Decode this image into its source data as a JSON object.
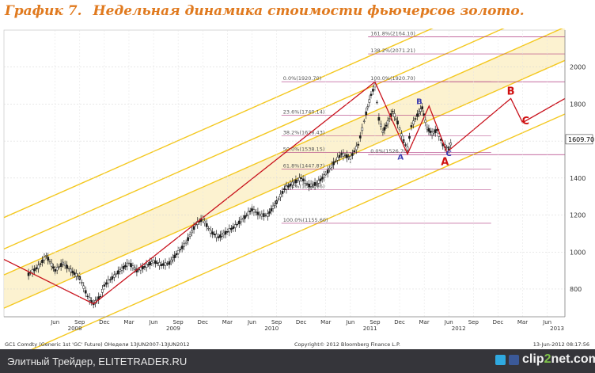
{
  "title": {
    "number": "График 7.",
    "text": "Недельная динамика стоимости фьючерсов золото."
  },
  "footer": {
    "site": "Элитный Трейдер, ELITETRADER.RU",
    "logo_main": "clip",
    "logo_two": "2",
    "logo_tail": "net.com"
  },
  "colors": {
    "title": "#e07a1f",
    "channel": "#f4c81f",
    "fill": "#fbf0c8",
    "trend": "#c8101a",
    "fib": "#b03a80",
    "wave_blue": "#3b3bb0",
    "wave_red": "#d01010",
    "price": "#1a1a1a"
  },
  "chart_data": {
    "type": "line",
    "subtype": "candlestick-weekly",
    "ylim": [
      650,
      2200
    ],
    "y_ticks": [
      800,
      1000,
      1200,
      1400,
      1600,
      1800,
      2000
    ],
    "x_ticks": [
      {
        "label": "Jun",
        "date": 2008.42
      },
      {
        "label": "Sep",
        "date": 2008.67
      },
      {
        "label": "Dec",
        "date": 2008.92
      },
      {
        "label": "Mar",
        "date": 2009.17
      },
      {
        "label": "Jun",
        "date": 2009.42
      },
      {
        "label": "Sep",
        "date": 2009.67
      },
      {
        "label": "Dec",
        "date": 2009.92
      },
      {
        "label": "Mar",
        "date": 2010.17
      },
      {
        "label": "Jun",
        "date": 2010.42
      },
      {
        "label": "Sep",
        "date": 2010.67
      },
      {
        "label": "Dec",
        "date": 2010.92
      },
      {
        "label": "Mar",
        "date": 2011.17
      },
      {
        "label": "Jun",
        "date": 2011.42
      },
      {
        "label": "Sep",
        "date": 2011.67
      },
      {
        "label": "Dec",
        "date": 2011.92
      },
      {
        "label": "Mar",
        "date": 2012.17
      },
      {
        "label": "Jun",
        "date": 2012.42
      },
      {
        "label": "Sep",
        "date": 2012.67
      },
      {
        "label": "Dec",
        "date": 2012.92
      },
      {
        "label": "Mar",
        "date": 2013.17
      },
      {
        "label": "Jun",
        "date": 2013.42
      }
    ],
    "year_labels": [
      {
        "label": "2008",
        "date": 2008.62
      },
      {
        "label": "2009",
        "date": 2009.62
      },
      {
        "label": "2010",
        "date": 2010.62
      },
      {
        "label": "2011",
        "date": 2011.62
      },
      {
        "label": "2012",
        "date": 2012.52
      },
      {
        "label": "2013",
        "date": 2013.52
      }
    ],
    "series": [
      {
        "name": "GC1 Comdty",
        "points": [
          [
            2008.15,
            880
          ],
          [
            2008.25,
            920
          ],
          [
            2008.33,
            980
          ],
          [
            2008.42,
            900
          ],
          [
            2008.5,
            940
          ],
          [
            2008.58,
            900
          ],
          [
            2008.67,
            860
          ],
          [
            2008.75,
            760
          ],
          [
            2008.81,
            720
          ],
          [
            2008.88,
            760
          ],
          [
            2008.92,
            820
          ],
          [
            2009.0,
            860
          ],
          [
            2009.08,
            900
          ],
          [
            2009.17,
            940
          ],
          [
            2009.25,
            900
          ],
          [
            2009.33,
            920
          ],
          [
            2009.42,
            950
          ],
          [
            2009.5,
            930
          ],
          [
            2009.58,
            940
          ],
          [
            2009.67,
            1000
          ],
          [
            2009.75,
            1050
          ],
          [
            2009.85,
            1150
          ],
          [
            2009.92,
            1180
          ],
          [
            2010.0,
            1110
          ],
          [
            2010.08,
            1080
          ],
          [
            2010.17,
            1110
          ],
          [
            2010.25,
            1140
          ],
          [
            2010.33,
            1180
          ],
          [
            2010.42,
            1230
          ],
          [
            2010.5,
            1200
          ],
          [
            2010.58,
            1200
          ],
          [
            2010.67,
            1270
          ],
          [
            2010.75,
            1340
          ],
          [
            2010.83,
            1370
          ],
          [
            2010.92,
            1400
          ],
          [
            2011.0,
            1360
          ],
          [
            2011.08,
            1370
          ],
          [
            2011.17,
            1420
          ],
          [
            2011.25,
            1480
          ],
          [
            2011.33,
            1530
          ],
          [
            2011.42,
            1510
          ],
          [
            2011.5,
            1580
          ],
          [
            2011.58,
            1750
          ],
          [
            2011.63,
            1850
          ],
          [
            2011.67,
            1900
          ],
          [
            2011.71,
            1720
          ],
          [
            2011.75,
            1650
          ],
          [
            2011.8,
            1700
          ],
          [
            2011.85,
            1760
          ],
          [
            2011.9,
            1700
          ],
          [
            2011.96,
            1600
          ],
          [
            2012.0,
            1560
          ],
          [
            2012.04,
            1680
          ],
          [
            2012.1,
            1740
          ],
          [
            2012.15,
            1780
          ],
          [
            2012.2,
            1670
          ],
          [
            2012.25,
            1640
          ],
          [
            2012.3,
            1660
          ],
          [
            2012.36,
            1580
          ],
          [
            2012.42,
            1560
          ],
          [
            2012.46,
            1610
          ]
        ]
      },
      {
        "name": "Trend",
        "points": [
          [
            2007.9,
            960
          ],
          [
            2008.81,
            720
          ],
          [
            2011.67,
            1920
          ],
          [
            2012.0,
            1530
          ],
          [
            2012.22,
            1790
          ],
          [
            2012.4,
            1540
          ],
          [
            2013.05,
            1830
          ],
          [
            2013.17,
            1700
          ],
          [
            2013.6,
            1830
          ]
        ]
      }
    ],
    "last_price": "1609.70",
    "fib_levels": [
      {
        "label": "0.0%(1920.70)",
        "value": 1920.7
      },
      {
        "label": "23.6%(1740.14)",
        "value": 1740.14
      },
      {
        "label": "38.2%(1628.43)",
        "value": 1628.43
      },
      {
        "label": "50.0%(1538.15)",
        "value": 1538.15
      },
      {
        "label": "61.8%(1447.87)",
        "value": 1447.87
      },
      {
        "label": "76.4%(1336.16)",
        "value": 1336.16
      },
      {
        "label": "100.0%(1155.60)",
        "value": 1155.6
      }
    ],
    "fib2_levels": [
      {
        "label": "161.8%(2164.10)",
        "value": 2164.1
      },
      {
        "label": "138.2%(2071.21)",
        "value": 2071.21
      },
      {
        "label": "100.0%(1920.70)",
        "value": 1920.7
      },
      {
        "label": "0.0%(1526.70)",
        "value": 1526.7
      }
    ],
    "wave_labels": [
      {
        "label": "A",
        "date": 2011.93,
        "value": 1500,
        "color": "blue"
      },
      {
        "label": "B",
        "date": 2012.12,
        "value": 1800,
        "color": "blue"
      },
      {
        "label": "C",
        "date": 2012.42,
        "value": 1520,
        "color": "blue"
      },
      {
        "label": "A",
        "date": 2012.38,
        "value": 1470,
        "color": "red"
      },
      {
        "label": "B",
        "date": 2013.05,
        "value": 1850,
        "color": "red"
      },
      {
        "label": "C",
        "date": 2013.2,
        "value": 1690,
        "color": "red"
      }
    ],
    "source_line": "GC1 Comdty (Generic 1st 'GC' Future) OНедели 13JUN2007-13JUN2012",
    "copyright": "Copyright© 2012 Bloomberg Finance L.P.",
    "timestamp": "13-Jun-2012 08:17:56"
  }
}
